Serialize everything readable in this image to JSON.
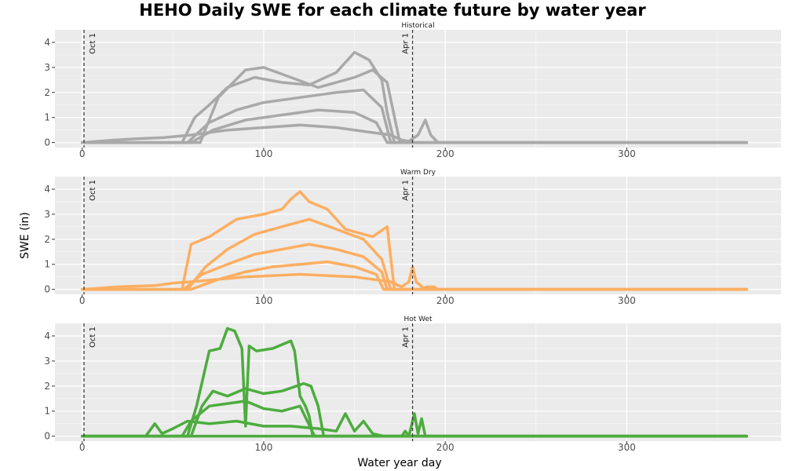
{
  "chart_data": {
    "type": "line",
    "title": "HEHO Daily SWE for each climate future by water year",
    "xlabel": "Water year day",
    "ylabel": "SWE (in)",
    "xlim": [
      -15,
      385
    ],
    "ylim": [
      -0.2,
      4.5
    ],
    "x_ticks": [
      0,
      100,
      200,
      300
    ],
    "y_ticks": [
      0,
      1,
      2,
      3,
      4
    ],
    "reference_lines": [
      {
        "x": 1,
        "label": "Oct 1"
      },
      {
        "x": 182,
        "label": "Apr 1"
      }
    ],
    "grid": true,
    "panels": [
      {
        "strip": "Historical",
        "color": "#a9a9a9",
        "series": [
          {
            "x": [
              0,
              55,
              62,
              70,
              80,
              95,
              110,
              125,
              140,
              150,
              158,
              165,
              168,
              172,
              366
            ],
            "y": [
              0,
              0,
              1.0,
              1.5,
              2.2,
              2.6,
              2.4,
              2.3,
              2.8,
              3.6,
              3.3,
              2.5,
              1.2,
              0,
              0
            ]
          },
          {
            "x": [
              0,
              65,
              75,
              90,
              100,
              115,
              130,
              150,
              160,
              168,
              175,
              366
            ],
            "y": [
              0,
              0,
              1.8,
              2.9,
              3.0,
              2.6,
              2.2,
              2.6,
              2.9,
              2.4,
              0,
              0
            ]
          },
          {
            "x": [
              0,
              58,
              70,
              85,
              100,
              120,
              140,
              155,
              165,
              170,
              366
            ],
            "y": [
              0,
              0,
              0.8,
              1.3,
              1.6,
              1.8,
              2.0,
              2.1,
              1.4,
              0,
              0
            ]
          },
          {
            "x": [
              0,
              60,
              72,
              90,
              110,
              130,
              150,
              162,
              168,
              366
            ],
            "y": [
              0,
              0,
              0.5,
              0.9,
              1.1,
              1.3,
              1.2,
              0.8,
              0,
              0
            ]
          },
          {
            "x": [
              0,
              18,
              30,
              45,
              60,
              80,
              100,
              120,
              140,
              160,
              170,
              176,
              180,
              185,
              189,
              192,
              196,
              366
            ],
            "y": [
              0,
              0.1,
              0.15,
              0.2,
              0.3,
              0.5,
              0.6,
              0.7,
              0.6,
              0.4,
              0.3,
              0.1,
              0.05,
              0.3,
              0.9,
              0.3,
              0,
              0
            ]
          }
        ]
      },
      {
        "strip": "Warm Dry",
        "color": "#fdae61",
        "series": [
          {
            "x": [
              0,
              55,
              60,
              70,
              85,
              100,
              110,
              115,
              120,
              125,
              135,
              145,
              160,
              168,
              172,
              366
            ],
            "y": [
              0,
              0,
              1.8,
              2.1,
              2.8,
              3.0,
              3.2,
              3.6,
              3.9,
              3.5,
              3.2,
              2.4,
              2.1,
              2.5,
              0,
              0
            ]
          },
          {
            "x": [
              0,
              58,
              68,
              80,
              95,
              110,
              125,
              140,
              155,
              165,
              170,
              366
            ],
            "y": [
              0,
              0,
              0.9,
              1.6,
              2.2,
              2.5,
              2.8,
              2.4,
              2.0,
              1.2,
              0,
              0
            ]
          },
          {
            "x": [
              0,
              56,
              66,
              80,
              95,
              110,
              125,
              140,
              155,
              165,
              168,
              366
            ],
            "y": [
              0,
              0,
              0.6,
              1.0,
              1.4,
              1.6,
              1.8,
              1.6,
              1.3,
              0.7,
              0,
              0
            ]
          },
          {
            "x": [
              0,
              60,
              75,
              90,
              105,
              120,
              135,
              150,
              162,
              166,
              366
            ],
            "y": [
              0,
              0,
              0.4,
              0.7,
              0.9,
              1.0,
              1.1,
              0.9,
              0.6,
              0,
              0
            ]
          },
          {
            "x": [
              0,
              20,
              40,
              50,
              60,
              90,
              120,
              150,
              170,
              176,
              180,
              182,
              184,
              188,
              190,
              194,
              196,
              366
            ],
            "y": [
              0,
              0.1,
              0.15,
              0.25,
              0.3,
              0.5,
              0.6,
              0.5,
              0.3,
              0.1,
              0.3,
              0.9,
              0.3,
              0.05,
              0.1,
              0.1,
              0,
              0
            ]
          }
        ]
      },
      {
        "strip": "Hot Wet",
        "color": "#4dac3f",
        "series": [
          {
            "x": [
              0,
              58,
              63,
              70,
              76,
              80,
              84,
              88,
              90,
              92,
              94,
              96,
              105,
              115,
              117,
              120,
              123,
              125,
              127,
              366
            ],
            "y": [
              0,
              0,
              1.2,
              3.4,
              3.5,
              4.3,
              4.2,
              3.5,
              0.4,
              3.6,
              3.5,
              3.4,
              3.5,
              3.8,
              3.4,
              1.6,
              1.2,
              0.8,
              0,
              0
            ]
          },
          {
            "x": [
              0,
              60,
              66,
              72,
              80,
              90,
              100,
              110,
              118,
              122,
              126,
              130,
              133,
              366
            ],
            "y": [
              0,
              0,
              1.2,
              1.8,
              1.6,
              1.9,
              1.7,
              1.8,
              2.0,
              2.1,
              2.0,
              1.2,
              0,
              0
            ]
          },
          {
            "x": [
              0,
              55,
              60,
              70,
              80,
              90,
              100,
              110,
              120,
              128,
              366
            ],
            "y": [
              0,
              0,
              0.6,
              1.2,
              1.3,
              1.4,
              1.1,
              1.0,
              1.2,
              0,
              0
            ]
          },
          {
            "x": [
              0,
              35,
              40,
              44,
              50,
              58,
              70,
              85,
              100,
              115,
              130,
              140,
              145,
              150,
              155,
              160,
              166,
              366
            ],
            "y": [
              0,
              0,
              0.5,
              0.1,
              0.3,
              0.6,
              0.5,
              0.6,
              0.4,
              0.4,
              0.3,
              0.2,
              0.9,
              0.2,
              0.6,
              0.1,
              0,
              0
            ]
          },
          {
            "x": [
              0,
              176,
              178,
              180,
              183,
              185,
              187,
              189,
              191,
              366
            ],
            "y": [
              0,
              0,
              0.2,
              0,
              0.9,
              0.1,
              0.7,
              0,
              0,
              0
            ]
          }
        ]
      }
    ]
  }
}
